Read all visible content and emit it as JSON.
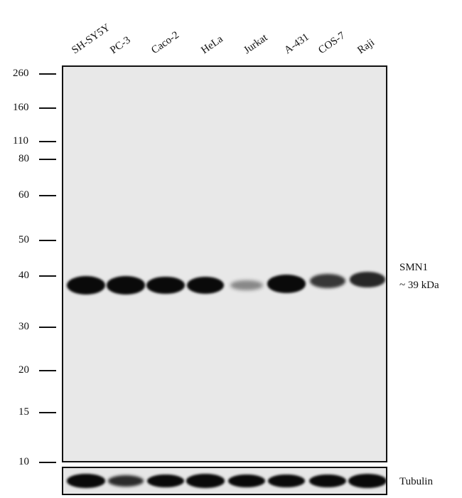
{
  "lanes": [
    "SH-SY5Y",
    "PC-3",
    "Caco-2",
    "HeLa",
    "Jurkat",
    "A-431",
    "COS-7",
    "Raji"
  ],
  "markers": [
    "260",
    "160",
    "110",
    "80",
    "60",
    "50",
    "40",
    "30",
    "20",
    "15",
    "10"
  ],
  "target": {
    "name": "SMN1",
    "size": "~ 39 kDa",
    "band_intensity": [
      1.0,
      0.95,
      0.92,
      0.9,
      0.28,
      0.95,
      0.65,
      0.72
    ]
  },
  "loading_control": {
    "name": "Tubulin",
    "band_intensity": [
      0.95,
      0.7,
      0.9,
      0.95,
      0.88,
      0.9,
      0.9,
      1.0
    ]
  },
  "colors": {
    "membrane": "#e8e8e8",
    "band": "#0a0a0a"
  }
}
